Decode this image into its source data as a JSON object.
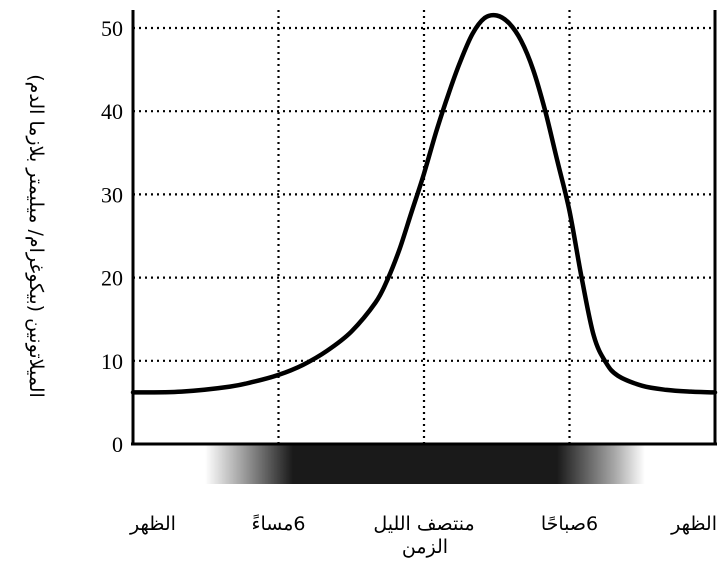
{
  "chart_data": {
    "type": "line",
    "xlabel": "الزمن",
    "ylabel": "الميلاتونين (بيكوغرام/ ميليمتر بلازما الدم)",
    "ylim": [
      0,
      52
    ],
    "yticks": [
      0,
      10,
      20,
      30,
      40,
      50
    ],
    "xlim": [
      0,
      24
    ],
    "categories": [
      "الظهر",
      "6مساءً",
      "منتصف الليل",
      "6صباحًا",
      "الظهر"
    ],
    "category_x": [
      0,
      6,
      12,
      18,
      24
    ],
    "grid": true,
    "legend": "none",
    "line_color": "#000000",
    "series": [
      {
        "x": [
          0,
          2,
          4,
          5,
          6,
          7,
          8,
          9,
          10,
          10.5,
          11,
          11.5,
          12,
          12.5,
          13,
          13.5,
          14,
          14.5,
          15,
          15.5,
          16,
          16.5,
          17,
          17.5,
          18,
          18.5,
          19,
          19.5,
          20,
          21,
          22,
          23,
          24
        ],
        "y": [
          6.2,
          6.3,
          6.9,
          7.5,
          8.3,
          9.5,
          11.2,
          13.5,
          17,
          19.8,
          23.5,
          28,
          32.5,
          37.5,
          42,
          46,
          49.3,
          51.2,
          51.5,
          50.6,
          48.5,
          45,
          40,
          34,
          28,
          20,
          13,
          9.8,
          8.2,
          7,
          6.5,
          6.3,
          6.2
        ]
      }
    ]
  }
}
